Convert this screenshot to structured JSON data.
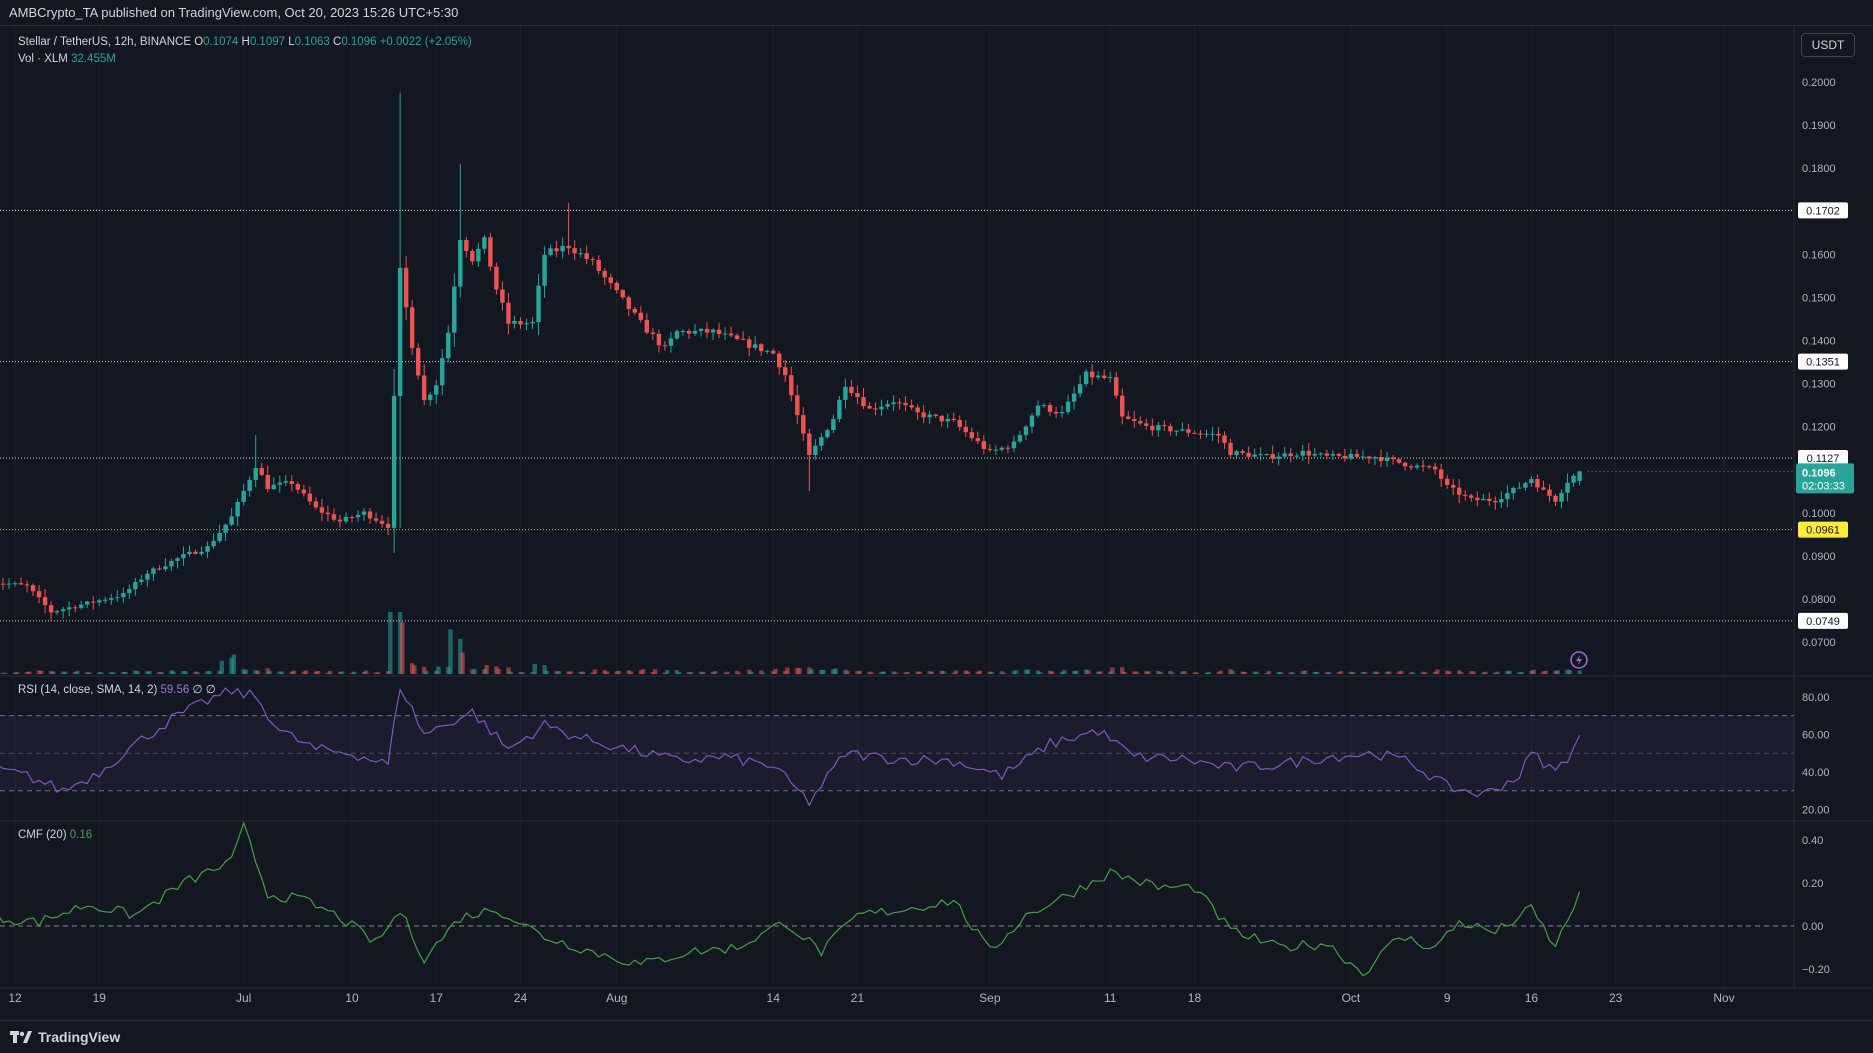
{
  "header": {
    "published": "AMBCrypto_TA published on TradingView.com, Oct 20, 2023 15:26 UTC+5:30"
  },
  "main_legend": {
    "symbol": "Stellar / TetherUS, 12h, BINANCE",
    "o_label": "O",
    "o_value": "0.1074",
    "h_label": "H",
    "h_value": "0.1097",
    "l_label": "L",
    "l_value": "0.1063",
    "c_label": "C",
    "c_value": "0.1096",
    "change": "+0.0022 (+2.05%)",
    "vol_label": "Vol · XLM",
    "vol_value": "32.455M"
  },
  "rsi_legend": {
    "label": "RSI (14, close, SMA, 14, 2)",
    "value": "59.56",
    "extra1": "∅",
    "extra2": "∅"
  },
  "cmf_legend": {
    "label": "CMF (20)",
    "value": "0.16"
  },
  "currency_button": "USDT",
  "footer": {
    "brand": "TradingView"
  },
  "colors": {
    "up": "#26a69a",
    "down": "#ef5350",
    "rsi": "#7e57c2",
    "cmf": "#43a047",
    "highlight": "#ffeb3b",
    "bg": "#131722"
  },
  "chart_data": [
    {
      "type": "candlestick",
      "title": "Stellar / TetherUS, 12h, BINANCE",
      "y_ticks": [
        "0.2000",
        "0.1900",
        "0.1800",
        "0.1600",
        "0.1500",
        "0.1400",
        "0.1300",
        "0.1200",
        "0.1000",
        "0.0900",
        "0.0800",
        "0.0700"
      ],
      "ylim": [
        0.065,
        0.207
      ],
      "x_ticks": [
        "12",
        "19",
        "Jul",
        "10",
        "17",
        "24",
        "Aug",
        "14",
        "21",
        "Sep",
        "11",
        "18",
        "Oct",
        "9",
        "16",
        "23",
        "Nov"
      ],
      "x_tick_dates": [
        "2023-06-12",
        "2023-06-19",
        "2023-07-01",
        "2023-07-10",
        "2023-07-17",
        "2023-07-24",
        "2023-08-01",
        "2023-08-14",
        "2023-08-21",
        "2023-09-01",
        "2023-09-11",
        "2023-09-18",
        "2023-10-01",
        "2023-10-09",
        "2023-10-16",
        "2023-10-23",
        "2023-11-01"
      ],
      "horizontal_levels": [
        {
          "value": 0.1702,
          "label": "0.1702",
          "style": "dotted-white"
        },
        {
          "value": 0.1351,
          "label": "0.1351",
          "style": "dotted-white"
        },
        {
          "value": 0.1127,
          "label": "0.1127",
          "style": "dotted-white"
        },
        {
          "value": 0.0961,
          "label": "0.0961",
          "style": "dotted-yellow"
        },
        {
          "value": 0.0749,
          "label": "0.0749",
          "style": "dotted-white"
        }
      ],
      "last_price": {
        "value": 0.1096,
        "label": "0.1096",
        "countdown": "02:03:33"
      },
      "close_path": [
        [
          "2023-06-10",
          0.084
        ],
        [
          "2023-06-13",
          0.083
        ],
        [
          "2023-06-15",
          0.077
        ],
        [
          "2023-06-18",
          0.079
        ],
        [
          "2023-06-21",
          0.081
        ],
        [
          "2023-06-23",
          0.086
        ],
        [
          "2023-06-26",
          0.09
        ],
        [
          "2023-06-28",
          0.092
        ],
        [
          "2023-06-30",
          0.099
        ],
        [
          "2023-07-02",
          0.111
        ],
        [
          "2023-07-03",
          0.106
        ],
        [
          "2023-07-05",
          0.107
        ],
        [
          "2023-07-07",
          0.101
        ],
        [
          "2023-07-09",
          0.098
        ],
        [
          "2023-07-11",
          0.1
        ],
        [
          "2023-07-13",
          0.097
        ],
        [
          "2023-07-14",
          0.156
        ],
        [
          "2023-07-15",
          0.139
        ],
        [
          "2023-07-16",
          0.126
        ],
        [
          "2023-07-17",
          0.13
        ],
        [
          "2023-07-18",
          0.142
        ],
        [
          "2023-07-19",
          0.164
        ],
        [
          "2023-07-20",
          0.159
        ],
        [
          "2023-07-21",
          0.163
        ],
        [
          "2023-07-22",
          0.152
        ],
        [
          "2023-07-23",
          0.144
        ],
        [
          "2023-07-25",
          0.144
        ],
        [
          "2023-07-26",
          0.16
        ],
        [
          "2023-07-28",
          0.162
        ],
        [
          "2023-07-30",
          0.158
        ],
        [
          "2023-08-01",
          0.151
        ],
        [
          "2023-08-03",
          0.144
        ],
        [
          "2023-08-05",
          0.138
        ],
        [
          "2023-08-06",
          0.142
        ],
        [
          "2023-08-09",
          0.142
        ],
        [
          "2023-08-12",
          0.139
        ],
        [
          "2023-08-14",
          0.137
        ],
        [
          "2023-08-15",
          0.132
        ],
        [
          "2023-08-17",
          0.113
        ],
        [
          "2023-08-19",
          0.122
        ],
        [
          "2023-08-20",
          0.13
        ],
        [
          "2023-08-22",
          0.124
        ],
        [
          "2023-08-24",
          0.126
        ],
        [
          "2023-08-26",
          0.123
        ],
        [
          "2023-08-29",
          0.121
        ],
        [
          "2023-09-01",
          0.114
        ],
        [
          "2023-09-03",
          0.116
        ],
        [
          "2023-09-05",
          0.125
        ],
        [
          "2023-09-07",
          0.123
        ],
        [
          "2023-09-09",
          0.132
        ],
        [
          "2023-09-11",
          0.131
        ],
        [
          "2023-09-12",
          0.122
        ],
        [
          "2023-09-14",
          0.12
        ],
        [
          "2023-09-17",
          0.119
        ],
        [
          "2023-09-20",
          0.118
        ],
        [
          "2023-09-21",
          0.114
        ],
        [
          "2023-09-24",
          0.113
        ],
        [
          "2023-09-27",
          0.114
        ],
        [
          "2023-09-29",
          0.113
        ],
        [
          "2023-10-01",
          0.113
        ],
        [
          "2023-10-03",
          0.113
        ],
        [
          "2023-10-06",
          0.111
        ],
        [
          "2023-10-08",
          0.11
        ],
        [
          "2023-10-09",
          0.106
        ],
        [
          "2023-10-11",
          0.103
        ],
        [
          "2023-10-13",
          0.103
        ],
        [
          "2023-10-15",
          0.106
        ],
        [
          "2023-10-16",
          0.108
        ],
        [
          "2023-10-17",
          0.105
        ],
        [
          "2023-10-18",
          0.103
        ],
        [
          "2023-10-19",
          0.1074
        ],
        [
          "2023-10-20",
          0.1096
        ]
      ],
      "last_candle": {
        "date": "2023-10-20",
        "open": 0.1074,
        "high": 0.1097,
        "low": 0.1063,
        "close": 0.1096
      },
      "volume_spikes": [
        {
          "date": "2023-07-14",
          "level": "high"
        },
        {
          "date": "2023-07-19",
          "level": "high"
        },
        {
          "date": "2023-06-30",
          "level": "medium"
        }
      ]
    },
    {
      "type": "line",
      "title": "RSI (14, close, SMA, 14, 2)",
      "y_ticks": [
        "80.00",
        "60.00",
        "40.00",
        "20.00"
      ],
      "ylim": [
        15,
        90
      ],
      "bands": {
        "upper": 70,
        "middle": 50,
        "lower": 30
      },
      "series": [
        {
          "name": "RSI",
          "points": [
            [
              "2023-06-10",
              42
            ],
            [
              "2023-06-13",
              38
            ],
            [
              "2023-06-16",
              30
            ],
            [
              "2023-06-19",
              40
            ],
            [
              "2023-06-22",
              55
            ],
            [
              "2023-06-25",
              68
            ],
            [
              "2023-06-28",
              78
            ],
            [
              "2023-06-30",
              83
            ],
            [
              "2023-07-02",
              80
            ],
            [
              "2023-07-04",
              62
            ],
            [
              "2023-07-07",
              52
            ],
            [
              "2023-07-10",
              50
            ],
            [
              "2023-07-13",
              44
            ],
            [
              "2023-07-14",
              86
            ],
            [
              "2023-07-16",
              60
            ],
            [
              "2023-07-18",
              66
            ],
            [
              "2023-07-20",
              72
            ],
            [
              "2023-07-23",
              52
            ],
            [
              "2023-07-26",
              65
            ],
            [
              "2023-07-29",
              58
            ],
            [
              "2023-08-02",
              52
            ],
            [
              "2023-08-06",
              46
            ],
            [
              "2023-08-10",
              48
            ],
            [
              "2023-08-14",
              43
            ],
            [
              "2023-08-17",
              24
            ],
            [
              "2023-08-20",
              50
            ],
            [
              "2023-08-24",
              47
            ],
            [
              "2023-08-29",
              46
            ],
            [
              "2023-09-02",
              38
            ],
            [
              "2023-09-06",
              55
            ],
            [
              "2023-09-10",
              62
            ],
            [
              "2023-09-13",
              48
            ],
            [
              "2023-09-17",
              47
            ],
            [
              "2023-09-21",
              42
            ],
            [
              "2023-09-25",
              44
            ],
            [
              "2023-09-29",
              48
            ],
            [
              "2023-10-03",
              50
            ],
            [
              "2023-10-06",
              45
            ],
            [
              "2023-10-09",
              32
            ],
            [
              "2023-10-12",
              28
            ],
            [
              "2023-10-15",
              38
            ],
            [
              "2023-10-16",
              50
            ],
            [
              "2023-10-18",
              40
            ],
            [
              "2023-10-19",
              48
            ],
            [
              "2023-10-20",
              59.56
            ]
          ]
        }
      ]
    },
    {
      "type": "line",
      "title": "CMF (20)",
      "y_ticks": [
        "0.40",
        "0.20",
        "0.00",
        "−0.20"
      ],
      "ylim": [
        -0.27,
        0.48
      ],
      "zero_line": 0,
      "series": [
        {
          "name": "CMF",
          "points": [
            [
              "2023-06-10",
              0.04
            ],
            [
              "2023-06-14",
              0.02
            ],
            [
              "2023-06-18",
              0.1
            ],
            [
              "2023-06-22",
              0.05
            ],
            [
              "2023-06-26",
              0.2
            ],
            [
              "2023-06-30",
              0.3
            ],
            [
              "2023-07-01",
              0.46
            ],
            [
              "2023-07-03",
              0.15
            ],
            [
              "2023-07-06",
              0.12
            ],
            [
              "2023-07-09",
              0.04
            ],
            [
              "2023-07-12",
              -0.08
            ],
            [
              "2023-07-14",
              0.07
            ],
            [
              "2023-07-16",
              -0.15
            ],
            [
              "2023-07-19",
              0.04
            ],
            [
              "2023-07-22",
              0.08
            ],
            [
              "2023-07-26",
              -0.05
            ],
            [
              "2023-07-30",
              -0.12
            ],
            [
              "2023-08-03",
              -0.18
            ],
            [
              "2023-08-07",
              -0.12
            ],
            [
              "2023-08-11",
              -0.1
            ],
            [
              "2023-08-15",
              0.02
            ],
            [
              "2023-08-18",
              -0.12
            ],
            [
              "2023-08-21",
              0.05
            ],
            [
              "2023-08-25",
              0.08
            ],
            [
              "2023-08-29",
              0.12
            ],
            [
              "2023-09-01",
              -0.12
            ],
            [
              "2023-09-04",
              0.05
            ],
            [
              "2023-09-08",
              0.16
            ],
            [
              "2023-09-11",
              0.25
            ],
            [
              "2023-09-15",
              0.18
            ],
            [
              "2023-09-18",
              0.18
            ],
            [
              "2023-09-21",
              -0.02
            ],
            [
              "2023-09-25",
              -0.1
            ],
            [
              "2023-09-29",
              -0.08
            ],
            [
              "2023-10-02",
              -0.22
            ],
            [
              "2023-10-05",
              -0.05
            ],
            [
              "2023-10-08",
              -0.1
            ],
            [
              "2023-10-10",
              0.02
            ],
            [
              "2023-10-13",
              -0.03
            ],
            [
              "2023-10-16",
              0.08
            ],
            [
              "2023-10-18",
              -0.1
            ],
            [
              "2023-10-20",
              0.16
            ]
          ]
        }
      ]
    }
  ]
}
